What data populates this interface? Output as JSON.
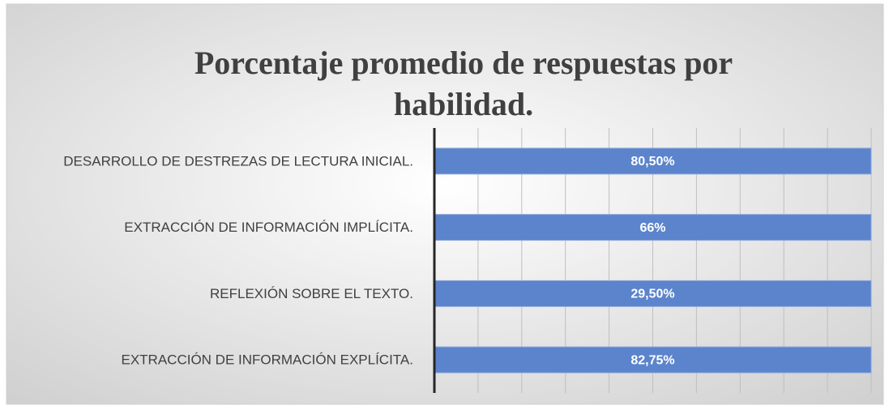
{
  "chart_data": {
    "type": "bar_100_horizontal",
    "title": [
      "Porcentaje promedio de respuestas por",
      "habilidad."
    ],
    "categories": [
      "DESARROLLO DE DESTREZAS DE LECTURA INICIAL.",
      "EXTRACCIÓN DE INFORMACIÓN IMPLÍCITA.",
      "REFLEXIÓN SOBRE EL TEXTO.",
      "EXTRACCIÓN DE INFORMACIÓN EXPLÍCITA."
    ],
    "values": [
      80.5,
      66,
      29.5,
      82.75
    ],
    "value_labels": [
      "80,50%",
      "66%",
      "29,50%",
      "82,75%"
    ],
    "color": "#5b84cc",
    "xlim": [
      0,
      100
    ],
    "xticks": [
      0,
      10,
      20,
      30,
      40,
      50,
      60,
      70,
      80,
      90,
      100
    ],
    "grid": true
  }
}
